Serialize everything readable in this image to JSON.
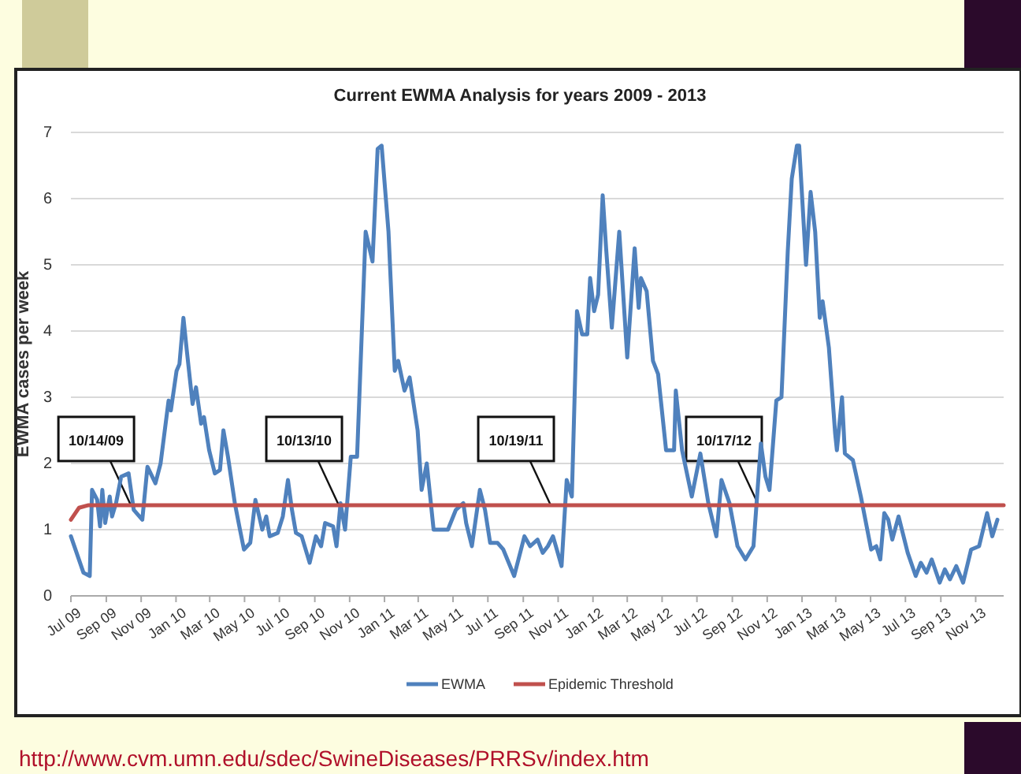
{
  "chart_data": {
    "type": "line",
    "title": "Current EWMA Analysis for years 2009 - 2013",
    "ylabel": "EWMA cases per week",
    "series": [
      {
        "name": "EWMA",
        "color": "#4f81bd",
        "x": [
          "2009-07-01",
          "2009-07-23",
          "2009-08-03",
          "2009-08-07",
          "2009-08-16",
          "2009-08-21",
          "2009-08-25",
          "2009-08-30",
          "2009-09-07",
          "2009-09-11",
          "2009-09-18",
          "2009-09-27",
          "2009-10-10",
          "2009-10-19",
          "2009-11-03",
          "2009-11-12",
          "2009-11-26",
          "2009-12-05",
          "2009-12-19",
          "2009-12-23",
          "2010-01-02",
          "2010-01-07",
          "2010-01-14",
          "2010-01-20",
          "2010-01-30",
          "2010-02-05",
          "2010-02-14",
          "2010-02-19",
          "2010-02-28",
          "2010-03-10",
          "2010-03-19",
          "2010-03-25",
          "2010-04-02",
          "2010-04-14",
          "2010-04-23",
          "2010-04-30",
          "2010-05-11",
          "2010-05-20",
          "2010-06-01",
          "2010-06-08",
          "2010-06-14",
          "2010-06-28",
          "2010-07-07",
          "2010-07-16",
          "2010-07-23",
          "2010-07-30",
          "2010-08-09",
          "2010-08-23",
          "2010-09-03",
          "2010-09-12",
          "2010-09-19",
          "2010-10-03",
          "2010-10-09",
          "2010-10-16",
          "2010-10-24",
          "2010-11-03",
          "2010-11-14",
          "2010-11-29",
          "2010-12-11",
          "2010-12-20",
          "2010-12-27",
          "2011-01-08",
          "2011-01-19",
          "2011-01-25",
          "2011-02-05",
          "2011-02-14",
          "2011-02-28",
          "2011-03-07",
          "2011-03-16",
          "2011-03-28",
          "2011-04-22",
          "2011-05-06",
          "2011-05-19",
          "2011-05-24",
          "2011-06-03",
          "2011-06-17",
          "2011-06-26",
          "2011-07-05",
          "2011-07-18",
          "2011-07-28",
          "2011-08-16",
          "2011-09-03",
          "2011-09-13",
          "2011-09-26",
          "2011-10-05",
          "2011-10-14",
          "2011-10-23",
          "2011-11-07",
          "2011-11-16",
          "2011-11-25",
          "2011-12-04",
          "2011-12-13",
          "2011-12-22",
          "2011-12-27",
          "2012-01-03",
          "2012-01-10",
          "2012-01-18",
          "2012-01-24",
          "2012-02-03",
          "2012-02-16",
          "2012-03-01",
          "2012-03-14",
          "2012-03-21",
          "2012-03-25",
          "2012-04-04",
          "2012-04-15",
          "2012-04-24",
          "2012-05-08",
          "2012-05-22",
          "2012-05-25",
          "2012-06-05",
          "2012-06-22",
          "2012-07-07",
          "2012-07-21",
          "2012-08-04",
          "2012-08-13",
          "2012-08-27",
          "2012-09-10",
          "2012-09-24",
          "2012-10-08",
          "2012-10-21",
          "2012-10-29",
          "2012-11-05",
          "2012-11-17",
          "2012-11-26",
          "2012-12-07",
          "2012-12-14",
          "2012-12-23",
          "2012-12-27",
          "2013-01-08",
          "2013-01-16",
          "2013-01-24",
          "2013-02-01",
          "2013-02-06",
          "2013-02-17",
          "2013-02-28",
          "2013-03-03",
          "2013-03-12",
          "2013-03-17",
          "2013-03-31",
          "2013-04-14",
          "2013-05-02",
          "2013-05-11",
          "2013-05-18",
          "2013-05-25",
          "2013-06-01",
          "2013-06-08",
          "2013-06-19",
          "2013-07-05",
          "2013-07-19",
          "2013-07-28",
          "2013-08-07",
          "2013-08-16",
          "2013-08-30",
          "2013-09-08",
          "2013-09-17",
          "2013-09-28",
          "2013-10-10",
          "2013-10-24",
          "2013-11-07",
          "2013-11-21",
          "2013-11-30",
          "2013-12-09"
        ],
        "values": [
          0.9,
          0.35,
          0.3,
          1.6,
          1.45,
          1.05,
          1.6,
          1.1,
          1.5,
          1.2,
          1.4,
          1.8,
          1.85,
          1.3,
          1.15,
          1.95,
          1.7,
          2.0,
          2.95,
          2.8,
          3.4,
          3.5,
          4.2,
          3.7,
          2.9,
          3.15,
          2.6,
          2.7,
          2.2,
          1.85,
          1.9,
          2.5,
          2.1,
          1.4,
          1.0,
          0.7,
          0.8,
          1.45,
          1.0,
          1.2,
          0.9,
          0.95,
          1.2,
          1.75,
          1.3,
          0.95,
          0.9,
          0.5,
          0.9,
          0.75,
          1.1,
          1.05,
          0.75,
          1.4,
          1.0,
          2.1,
          2.1,
          5.5,
          5.05,
          6.75,
          6.8,
          5.5,
          3.4,
          3.55,
          3.1,
          3.3,
          2.5,
          1.6,
          2.0,
          1.0,
          1.0,
          1.3,
          1.4,
          1.1,
          0.75,
          1.6,
          1.3,
          0.8,
          0.8,
          0.7,
          0.3,
          0.9,
          0.75,
          0.85,
          0.65,
          0.75,
          0.9,
          0.45,
          1.75,
          1.5,
          4.3,
          3.95,
          3.95,
          4.8,
          4.3,
          4.55,
          6.05,
          5.25,
          4.05,
          5.5,
          3.6,
          5.25,
          4.35,
          4.8,
          4.6,
          3.55,
          3.35,
          2.2,
          2.2,
          3.1,
          2.2,
          1.5,
          2.15,
          1.4,
          0.9,
          1.75,
          1.4,
          0.75,
          0.55,
          0.75,
          2.3,
          1.8,
          1.6,
          2.95,
          3.0,
          5.2,
          6.3,
          6.8,
          6.8,
          5.0,
          6.1,
          5.5,
          4.2,
          4.45,
          3.75,
          2.45,
          2.2,
          3.0,
          2.15,
          2.05,
          1.5,
          0.7,
          0.75,
          0.55,
          1.25,
          1.15,
          0.85,
          1.2,
          0.65,
          0.3,
          0.5,
          0.35,
          0.55,
          0.2,
          0.4,
          0.25,
          0.45,
          0.2,
          0.7,
          0.75,
          1.25,
          0.9,
          1.15
        ]
      },
      {
        "name": "Epidemic Threshold",
        "color": "#c0504d",
        "x": [
          "2009-07-01",
          "2009-07-15",
          "2009-08-01",
          "2013-12-20"
        ],
        "values": [
          1.15,
          1.33,
          1.37,
          1.37
        ]
      }
    ],
    "xlim": [
      "2009-07-01",
      "2013-12-20"
    ],
    "xticks": [
      {
        "value": "2009-07-01",
        "label": "Jul 09"
      },
      {
        "value": "2009-09-01",
        "label": "Sep 09"
      },
      {
        "value": "2009-11-01",
        "label": "Nov 09"
      },
      {
        "value": "2010-01-01",
        "label": "Jan 10"
      },
      {
        "value": "2010-03-01",
        "label": "Mar 10"
      },
      {
        "value": "2010-05-01",
        "label": "May 10"
      },
      {
        "value": "2010-07-01",
        "label": "Jul 10"
      },
      {
        "value": "2010-09-01",
        "label": "Sep 10"
      },
      {
        "value": "2010-11-01",
        "label": "Nov 10"
      },
      {
        "value": "2011-01-01",
        "label": "Jan 11"
      },
      {
        "value": "2011-03-01",
        "label": "Mar 11"
      },
      {
        "value": "2011-05-01",
        "label": "May 11"
      },
      {
        "value": "2011-07-01",
        "label": "Jul 11"
      },
      {
        "value": "2011-09-01",
        "label": "Sep 11"
      },
      {
        "value": "2011-11-01",
        "label": "Nov 11"
      },
      {
        "value": "2012-01-01",
        "label": "Jan 12"
      },
      {
        "value": "2012-03-01",
        "label": "Mar 12"
      },
      {
        "value": "2012-05-01",
        "label": "May 12"
      },
      {
        "value": "2012-07-01",
        "label": "Jul 12"
      },
      {
        "value": "2012-09-01",
        "label": "Sep 12"
      },
      {
        "value": "2012-11-01",
        "label": "Nov 12"
      },
      {
        "value": "2013-01-01",
        "label": "Jan 13"
      },
      {
        "value": "2013-03-01",
        "label": "Mar 13"
      },
      {
        "value": "2013-05-01",
        "label": "May 13"
      },
      {
        "value": "2013-07-01",
        "label": "Jul 13"
      },
      {
        "value": "2013-09-01",
        "label": "Sep 13"
      },
      {
        "value": "2013-11-01",
        "label": "Nov 13"
      }
    ],
    "ylim": [
      0,
      7
    ],
    "yticks": [
      0,
      1,
      2,
      3,
      4,
      5,
      6,
      7
    ],
    "grid": "y",
    "legend": "bottom",
    "marker": "none",
    "line_style": "solid",
    "annotations": [
      {
        "text": "10/14/09",
        "x": "2009-10-14",
        "y": 1.37
      },
      {
        "text": "10/13/10",
        "x": "2010-10-13",
        "y": 1.37
      },
      {
        "text": "10/19/11",
        "x": "2011-10-19",
        "y": 1.37
      },
      {
        "text": "10/17/12",
        "x": "2012-10-17",
        "y": 1.37
      },
      "http://www.cvm.umn.edu/sdec/SwineDiseases/PRRSv/index.htm"
    ]
  }
}
